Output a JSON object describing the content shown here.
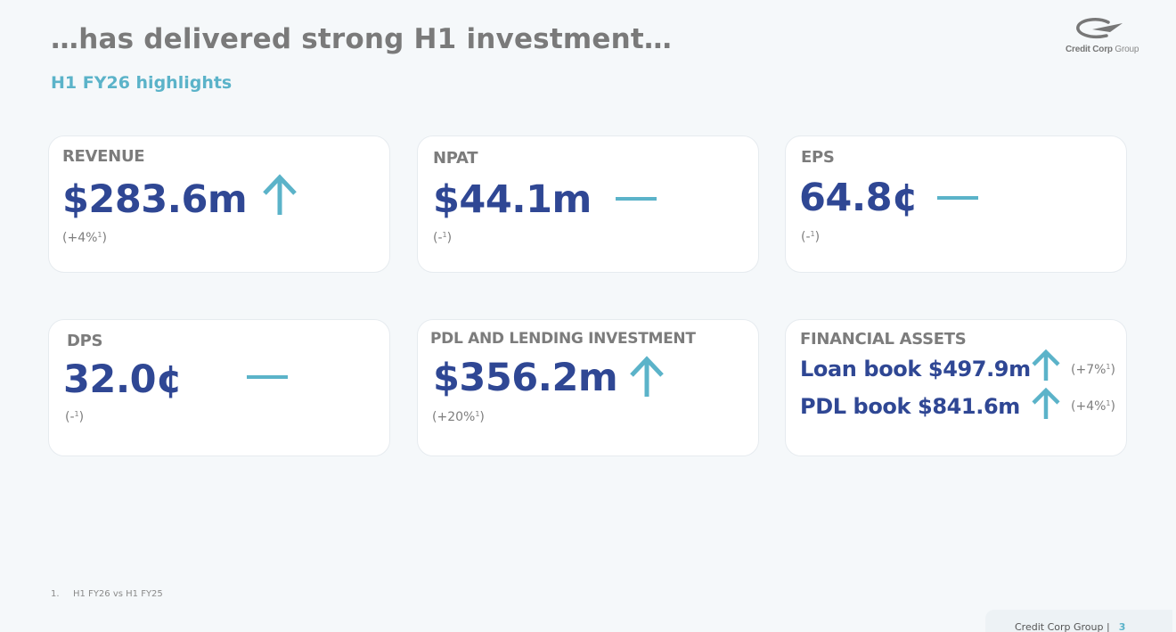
{
  "header": {
    "title": "…has delivered strong H1 investment…",
    "subtitle": "H1 FY26 highlights"
  },
  "logo": {
    "name_bold": "Credit Corp",
    "name_light": "Group"
  },
  "cards": [
    {
      "label": "REVENUE",
      "value": "$283.6m",
      "note": "(+4%",
      "indicator": "up-arrow-icon"
    },
    {
      "label": "NPAT",
      "value": "$44.1m",
      "note": "(-",
      "indicator": "dash-icon"
    },
    {
      "label": "EPS",
      "value": "64.8¢",
      "note": "(-",
      "indicator": "dash-icon"
    },
    {
      "label": "DPS",
      "value": "32.0¢",
      "note": "(-",
      "indicator": "dash-icon"
    },
    {
      "label": "PDL AND LENDING INVESTMENT",
      "value": "$356.2m",
      "note": "(+20%",
      "indicator": "up-arrow-icon"
    }
  ],
  "financial_assets": {
    "label": "FINANCIAL ASSETS",
    "rows": [
      {
        "text": "Loan book $497.9m",
        "note": "(+7%",
        "indicator": "up-arrow-icon"
      },
      {
        "text": "PDL book $841.6m",
        "note": "(+4%",
        "indicator": "up-arrow-icon"
      }
    ]
  },
  "footnote_marker": "1",
  "footnote": {
    "number": "1.",
    "text": "H1 FY26 vs H1 FY25"
  },
  "footer": {
    "company": "Credit Corp Group |",
    "page": "3"
  },
  "colors": {
    "accent": "#5bb3c9",
    "value": "#2f4794",
    "label": "#7c7c7c"
  }
}
